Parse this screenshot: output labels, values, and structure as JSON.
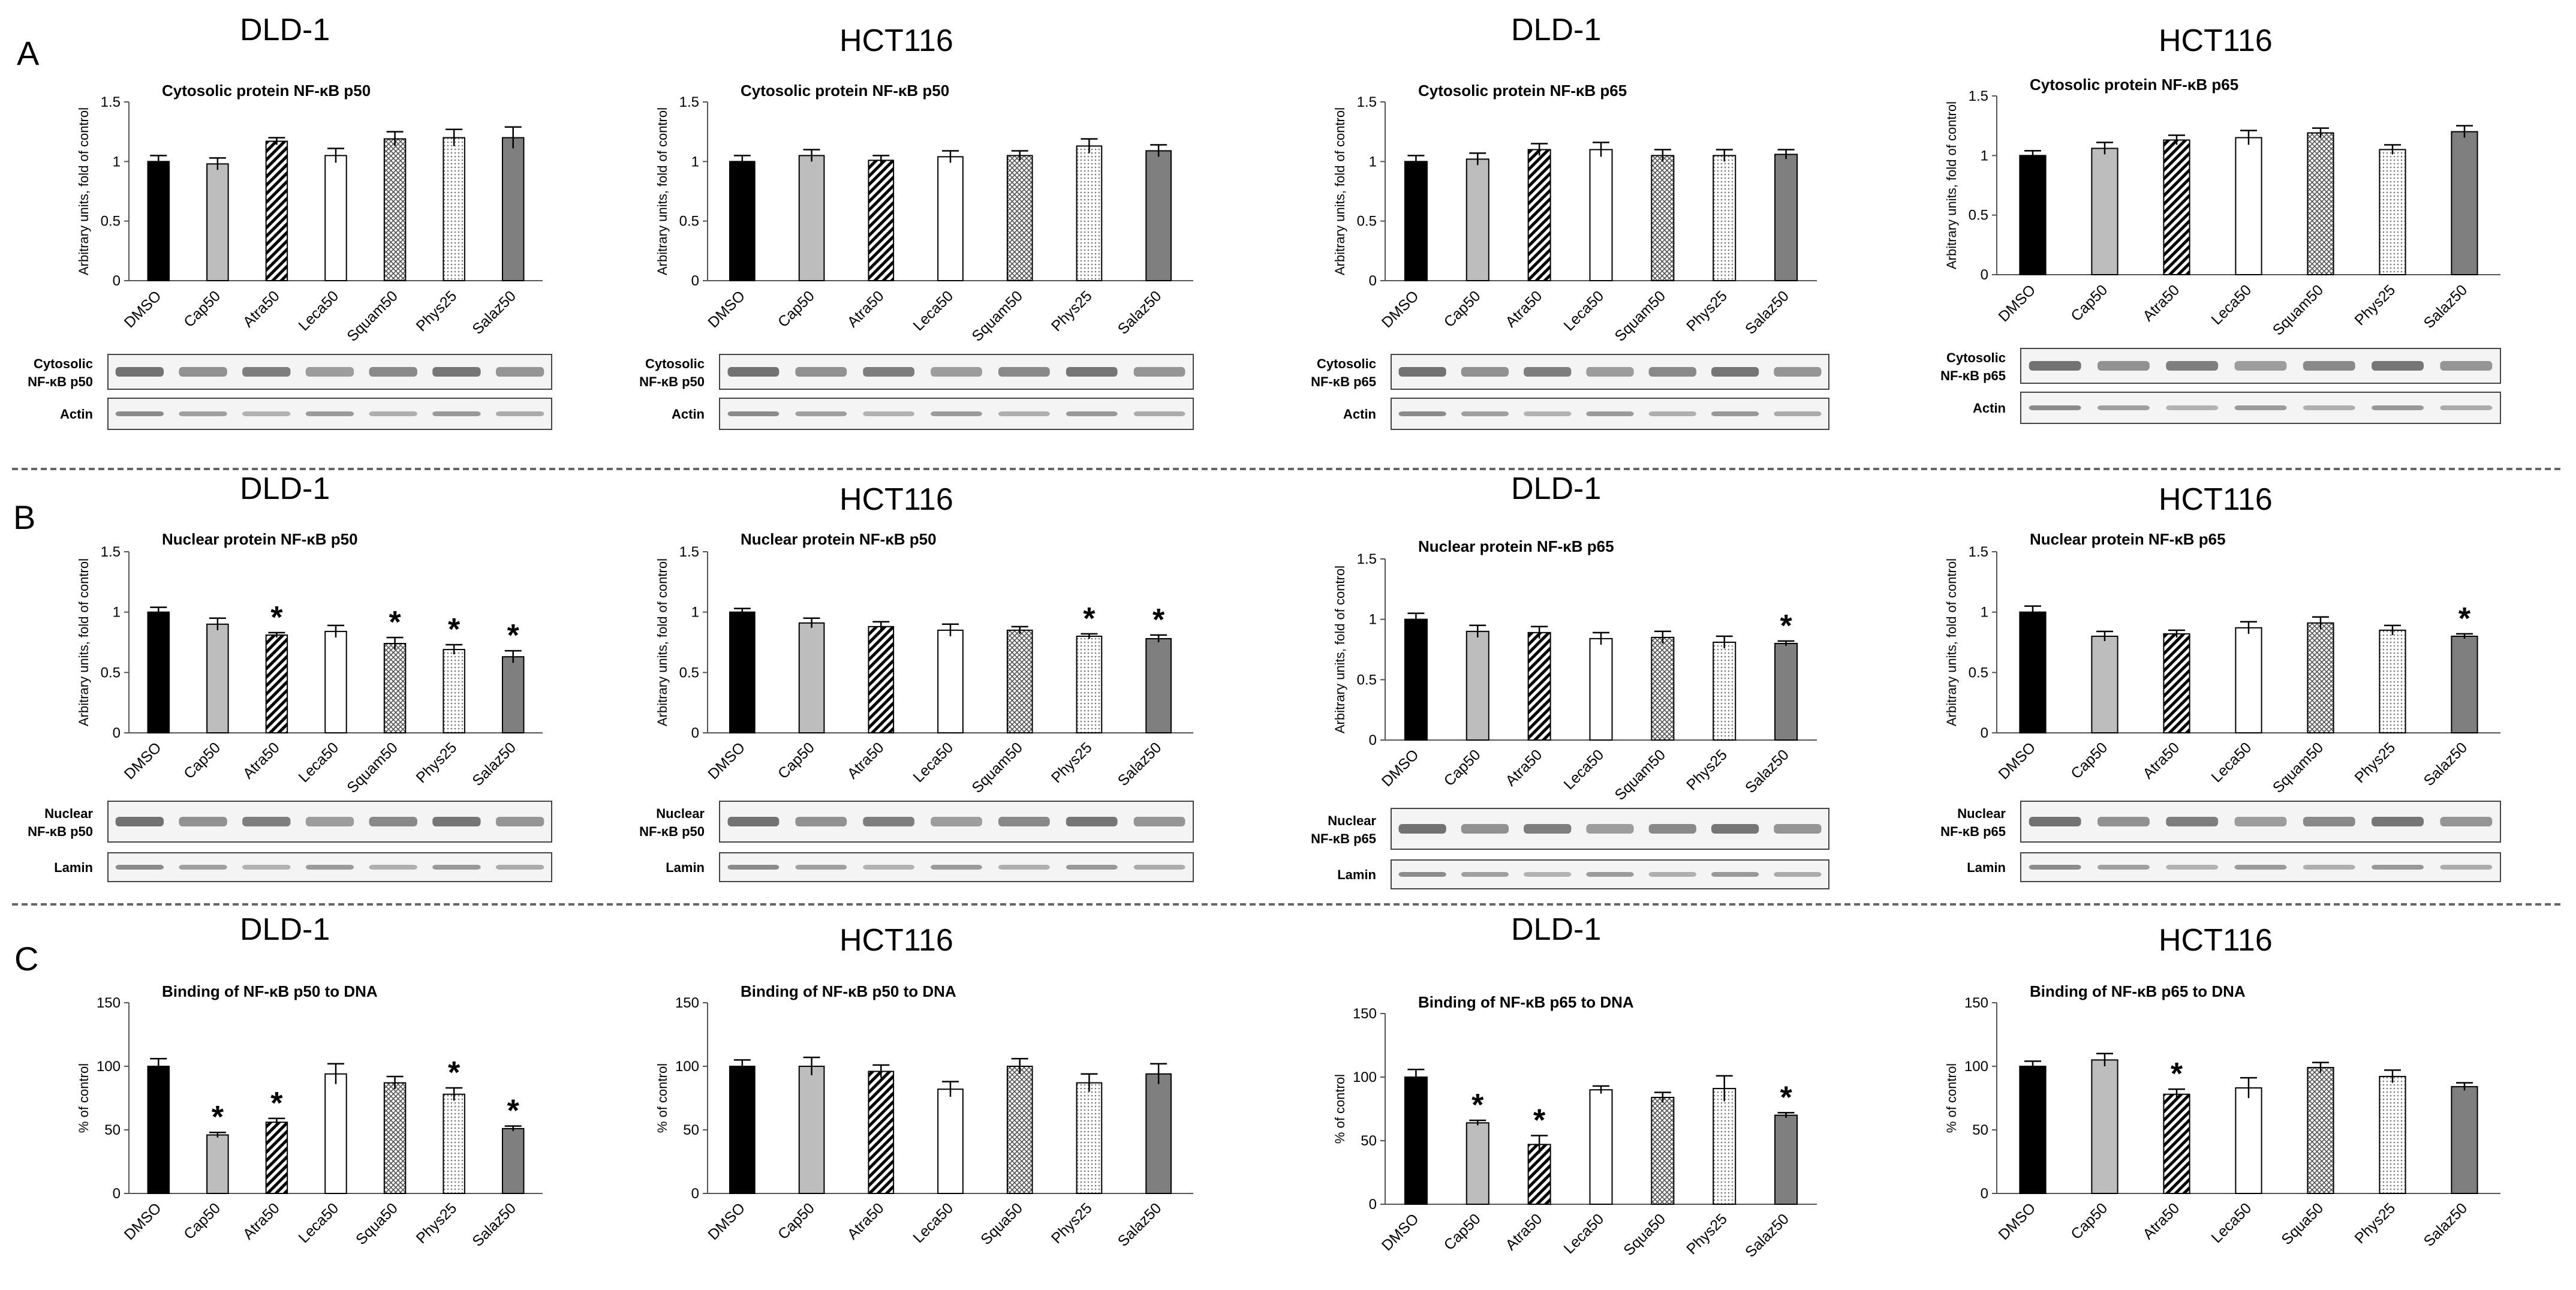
{
  "figure": {
    "panels": [
      {
        "letter": "A"
      },
      {
        "letter": "B"
      },
      {
        "letter": "C"
      }
    ],
    "colors": {
      "DMSO": "#000000",
      "Cap": "#bdbdbd",
      "Atra": "hatch-diagonal",
      "Leca": "#ffffff",
      "Squam": "hatch-crosshatch",
      "Phys": "hatch-dots",
      "Salaz": "#7f7f7f"
    }
  },
  "chart_data": [
    {
      "id": "A1",
      "type": "bar",
      "cell_line": "DLD-1",
      "title": "Cytosolic protein NF-κB p50",
      "ylabel": "Arbitrary units, fold of control",
      "ylim": [
        0,
        1.5
      ],
      "yticks": [
        "0",
        "0.5",
        "1",
        "1.5"
      ],
      "categories": [
        "DMSO",
        "Cap50",
        "Atra50",
        "Leca50",
        "Squam50",
        "Phys25",
        "Salaz50"
      ],
      "values": [
        1.0,
        0.98,
        1.17,
        1.05,
        1.19,
        1.2,
        1.2
      ],
      "errors": [
        0.05,
        0.05,
        0.03,
        0.06,
        0.06,
        0.07,
        0.09
      ],
      "significant": [
        false,
        false,
        false,
        false,
        false,
        false,
        false
      ],
      "blots": [
        {
          "label": "Cytosolic\nNF-κB p50"
        },
        {
          "label": "Actin"
        }
      ]
    },
    {
      "id": "A2",
      "type": "bar",
      "cell_line": "HCT116",
      "title": "Cytosolic protein NF-κB p50",
      "ylabel": "Arbitrary units, fold of control",
      "ylim": [
        0,
        1.5
      ],
      "yticks": [
        "0",
        "0.5",
        "1",
        "1.5"
      ],
      "categories": [
        "DMSO",
        "Cap50",
        "Atra50",
        "Leca50",
        "Squam50",
        "Phys25",
        "Salaz50"
      ],
      "values": [
        1.0,
        1.05,
        1.01,
        1.04,
        1.05,
        1.13,
        1.09
      ],
      "errors": [
        0.05,
        0.05,
        0.04,
        0.05,
        0.04,
        0.06,
        0.05
      ],
      "significant": [
        false,
        false,
        false,
        false,
        false,
        false,
        false
      ],
      "blots": [
        {
          "label": "Cytosolic\nNF-κB p50"
        },
        {
          "label": "Actin"
        }
      ]
    },
    {
      "id": "A3",
      "type": "bar",
      "cell_line": "DLD-1",
      "title": "Cytosolic protein NF-κB p65",
      "ylabel": "Arbitrary units, fold of control",
      "ylim": [
        0,
        1.5
      ],
      "yticks": [
        "0",
        "0.5",
        "1",
        "1.5"
      ],
      "categories": [
        "DMSO",
        "Cap50",
        "Atra50",
        "Leca50",
        "Squam50",
        "Phys25",
        "Salaz50"
      ],
      "values": [
        1.0,
        1.02,
        1.1,
        1.1,
        1.05,
        1.05,
        1.06
      ],
      "errors": [
        0.05,
        0.05,
        0.05,
        0.06,
        0.05,
        0.05,
        0.04
      ],
      "significant": [
        false,
        false,
        false,
        false,
        false,
        false,
        false
      ],
      "blots": [
        {
          "label": "Cytosolic\nNF-κB p65"
        },
        {
          "label": "Actin"
        }
      ]
    },
    {
      "id": "A4",
      "type": "bar",
      "cell_line": "HCT116",
      "title": "Cytosolic protein NF-κB p65",
      "ylabel": "Arbitrary units, fold of control",
      "ylim": [
        0,
        1.5
      ],
      "yticks": [
        "0",
        "0.5",
        "1",
        "1.5"
      ],
      "categories": [
        "DMSO",
        "Cap50",
        "Atra50",
        "Leca50",
        "Squam50",
        "Phys25",
        "Salaz50"
      ],
      "values": [
        1.0,
        1.06,
        1.13,
        1.15,
        1.19,
        1.05,
        1.2
      ],
      "errors": [
        0.04,
        0.05,
        0.04,
        0.06,
        0.04,
        0.04,
        0.05
      ],
      "significant": [
        false,
        false,
        false,
        false,
        false,
        false,
        false
      ],
      "blots": [
        {
          "label": "Cytosolic\nNF-κB p65"
        },
        {
          "label": "Actin"
        }
      ]
    },
    {
      "id": "B1",
      "type": "bar",
      "cell_line": "DLD-1",
      "title": "Nuclear protein NF-κB p50",
      "ylabel": "Arbitrary units, fold of control",
      "ylim": [
        0,
        1.5
      ],
      "yticks": [
        "0",
        "0.5",
        "1",
        "1.5"
      ],
      "categories": [
        "DMSO",
        "Cap50",
        "Atra50",
        "Leca50",
        "Squam50",
        "Phys25",
        "Salaz50"
      ],
      "values": [
        1.0,
        0.9,
        0.81,
        0.84,
        0.74,
        0.69,
        0.63
      ],
      "errors": [
        0.04,
        0.05,
        0.02,
        0.05,
        0.05,
        0.04,
        0.05
      ],
      "significant": [
        false,
        false,
        true,
        false,
        true,
        true,
        true
      ],
      "blots": [
        {
          "label": "Nuclear\nNF-κB p50"
        },
        {
          "label": "Lamin"
        }
      ]
    },
    {
      "id": "B2",
      "type": "bar",
      "cell_line": "HCT116",
      "title": "Nuclear protein NF-κB p50",
      "ylabel": "Arbitrary units, fold of control",
      "ylim": [
        0,
        1.5
      ],
      "yticks": [
        "0",
        "0.5",
        "1",
        "1.5"
      ],
      "categories": [
        "DMSO",
        "Cap50",
        "Atra50",
        "Leca50",
        "Squam50",
        "Phys25",
        "Salaz50"
      ],
      "values": [
        1.0,
        0.91,
        0.88,
        0.85,
        0.85,
        0.8,
        0.78
      ],
      "errors": [
        0.03,
        0.04,
        0.04,
        0.05,
        0.03,
        0.02,
        0.03
      ],
      "significant": [
        false,
        false,
        false,
        false,
        false,
        true,
        true
      ],
      "blots": [
        {
          "label": "Nuclear\nNF-κB p50"
        },
        {
          "label": "Lamin"
        }
      ]
    },
    {
      "id": "B3",
      "type": "bar",
      "cell_line": "DLD-1",
      "title": "Nuclear protein NF-κB p65",
      "ylabel": "Arbitrary units, fold of control",
      "ylim": [
        0,
        1.5
      ],
      "yticks": [
        "0",
        "0.5",
        "1",
        "1.5"
      ],
      "categories": [
        "DMSO",
        "Cap50",
        "Atra50",
        "Leca50",
        "Squam50",
        "Phys25",
        "Salaz50"
      ],
      "values": [
        1.0,
        0.9,
        0.89,
        0.84,
        0.85,
        0.81,
        0.8
      ],
      "errors": [
        0.05,
        0.05,
        0.05,
        0.05,
        0.05,
        0.05,
        0.02
      ],
      "significant": [
        false,
        false,
        false,
        false,
        false,
        false,
        true
      ],
      "blots": [
        {
          "label": "Nuclear\nNF-κB p65"
        },
        {
          "label": "Lamin"
        }
      ]
    },
    {
      "id": "B4",
      "type": "bar",
      "cell_line": "HCT116",
      "title": "Nuclear protein NF-κB p65",
      "ylabel": "Arbitrary units, fold of control",
      "ylim": [
        0,
        1.5
      ],
      "yticks": [
        "0",
        "0.5",
        "1",
        "1.5"
      ],
      "categories": [
        "DMSO",
        "Cap50",
        "Atra50",
        "Leca50",
        "Squam50",
        "Phys25",
        "Salaz50"
      ],
      "values": [
        1.0,
        0.8,
        0.82,
        0.87,
        0.91,
        0.85,
        0.8
      ],
      "errors": [
        0.05,
        0.04,
        0.03,
        0.05,
        0.05,
        0.04,
        0.02
      ],
      "significant": [
        false,
        false,
        false,
        false,
        false,
        false,
        true
      ],
      "blots": [
        {
          "label": "Nuclear\nNF-κB p65"
        },
        {
          "label": "Lamin"
        }
      ]
    },
    {
      "id": "C1",
      "type": "bar",
      "cell_line": "DLD-1",
      "title": "Binding of NF-κB p50 to DNA",
      "ylabel": "% of control",
      "ylim": [
        0,
        150
      ],
      "yticks": [
        "0",
        "50",
        "100",
        "150"
      ],
      "categories": [
        "DMSO",
        "Cap50",
        "Atra50",
        "Leca50",
        "Squa50",
        "Phys25",
        "Salaz50"
      ],
      "values": [
        100,
        46,
        56,
        94,
        87,
        78,
        51
      ],
      "errors": [
        6,
        2,
        3,
        8,
        5,
        5,
        2
      ],
      "significant": [
        false,
        true,
        true,
        false,
        false,
        true,
        true
      ],
      "blots": []
    },
    {
      "id": "C2",
      "type": "bar",
      "cell_line": "HCT116",
      "title": "Binding of NF-κB p50 to DNA",
      "ylabel": "% of control",
      "ylim": [
        0,
        150
      ],
      "yticks": [
        "0",
        "50",
        "100",
        "150"
      ],
      "categories": [
        "DMSO",
        "Cap50",
        "Atra50",
        "Leca50",
        "Squa50",
        "Phys25",
        "Salaz50"
      ],
      "values": [
        100,
        100,
        96,
        82,
        100,
        87,
        94
      ],
      "errors": [
        5,
        7,
        5,
        6,
        6,
        7,
        8
      ],
      "significant": [
        false,
        false,
        false,
        false,
        false,
        false,
        false
      ],
      "blots": []
    },
    {
      "id": "C3",
      "type": "bar",
      "cell_line": "DLD-1",
      "title": "Binding of NF-κB p65 to DNA",
      "ylabel": "% of control",
      "ylim": [
        0,
        150
      ],
      "yticks": [
        "0",
        "50",
        "100",
        "150"
      ],
      "categories": [
        "DMSO",
        "Cap50",
        "Atra50",
        "Leca50",
        "Squa50",
        "Phys25",
        "Salaz50"
      ],
      "values": [
        100,
        64,
        47,
        90,
        84,
        91,
        70
      ],
      "errors": [
        6,
        2,
        7,
        3,
        4,
        10,
        2
      ],
      "significant": [
        false,
        true,
        true,
        false,
        false,
        false,
        true
      ],
      "blots": []
    },
    {
      "id": "C4",
      "type": "bar",
      "cell_line": "HCT116",
      "title": "Binding of NF-κB p65 to DNA",
      "ylabel": "% of control",
      "ylim": [
        0,
        150
      ],
      "yticks": [
        "0",
        "50",
        "100",
        "150"
      ],
      "categories": [
        "DMSO",
        "Cap50",
        "Atra50",
        "Leca50",
        "Squa50",
        "Phys25",
        "Salaz50"
      ],
      "values": [
        100,
        105,
        78,
        83,
        99,
        92,
        84
      ],
      "errors": [
        4,
        5,
        4,
        8,
        4,
        5,
        3
      ],
      "significant": [
        false,
        false,
        true,
        false,
        false,
        false,
        false
      ],
      "blots": []
    }
  ]
}
